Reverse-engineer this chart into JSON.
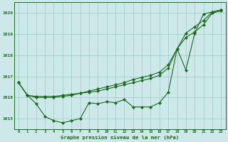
{
  "xlabel": "Graphe pression niveau de la mer (hPa)",
  "background_color": "#cce8e8",
  "grid_color": "#99cccc",
  "line_color": "#1a6b1a",
  "hours": [
    0,
    1,
    2,
    3,
    4,
    5,
    6,
    7,
    8,
    9,
    10,
    11,
    12,
    13,
    14,
    15,
    16,
    17,
    18,
    19,
    20,
    21,
    22,
    23
  ],
  "line_wiggly": [
    1016.7,
    1016.1,
    1015.7,
    1015.1,
    1014.9,
    1014.8,
    1014.9,
    1015.0,
    1015.75,
    1015.7,
    1015.8,
    1015.75,
    1015.9,
    1015.55,
    1015.55,
    1015.55,
    1015.75,
    1016.25,
    1018.3,
    1017.3,
    1019.05,
    1019.95,
    1020.05,
    1020.15
  ],
  "line_upper": [
    1016.7,
    1016.1,
    1016.0,
    1016.0,
    1016.0,
    1016.05,
    1016.1,
    1016.2,
    1016.3,
    1016.4,
    1016.5,
    1016.6,
    1016.7,
    1016.85,
    1016.95,
    1017.05,
    1017.2,
    1017.55,
    1018.3,
    1019.05,
    1019.35,
    1019.65,
    1020.05,
    1020.15
  ],
  "line_straight": [
    1016.7,
    1016.1,
    1016.05,
    1016.05,
    1016.05,
    1016.1,
    1016.15,
    1016.2,
    1016.25,
    1016.3,
    1016.4,
    1016.5,
    1016.6,
    1016.7,
    1016.8,
    1016.9,
    1017.05,
    1017.4,
    1018.3,
    1018.85,
    1019.1,
    1019.45,
    1020.0,
    1020.1
  ],
  "ylim": [
    1014.5,
    1020.5
  ],
  "yticks": [
    1015,
    1016,
    1017,
    1018,
    1019,
    1020
  ],
  "xticks": [
    0,
    1,
    2,
    3,
    4,
    5,
    6,
    7,
    8,
    9,
    10,
    11,
    12,
    13,
    14,
    15,
    16,
    17,
    18,
    19,
    20,
    21,
    22,
    23
  ],
  "xtick_labels": [
    "0",
    "1",
    "2",
    "3",
    "4",
    "5",
    "6",
    "7",
    "8",
    "9",
    "10",
    "11",
    "12",
    "13",
    "14",
    "15",
    "16",
    "17",
    "18",
    "19",
    "20",
    "21",
    "22",
    "23"
  ]
}
